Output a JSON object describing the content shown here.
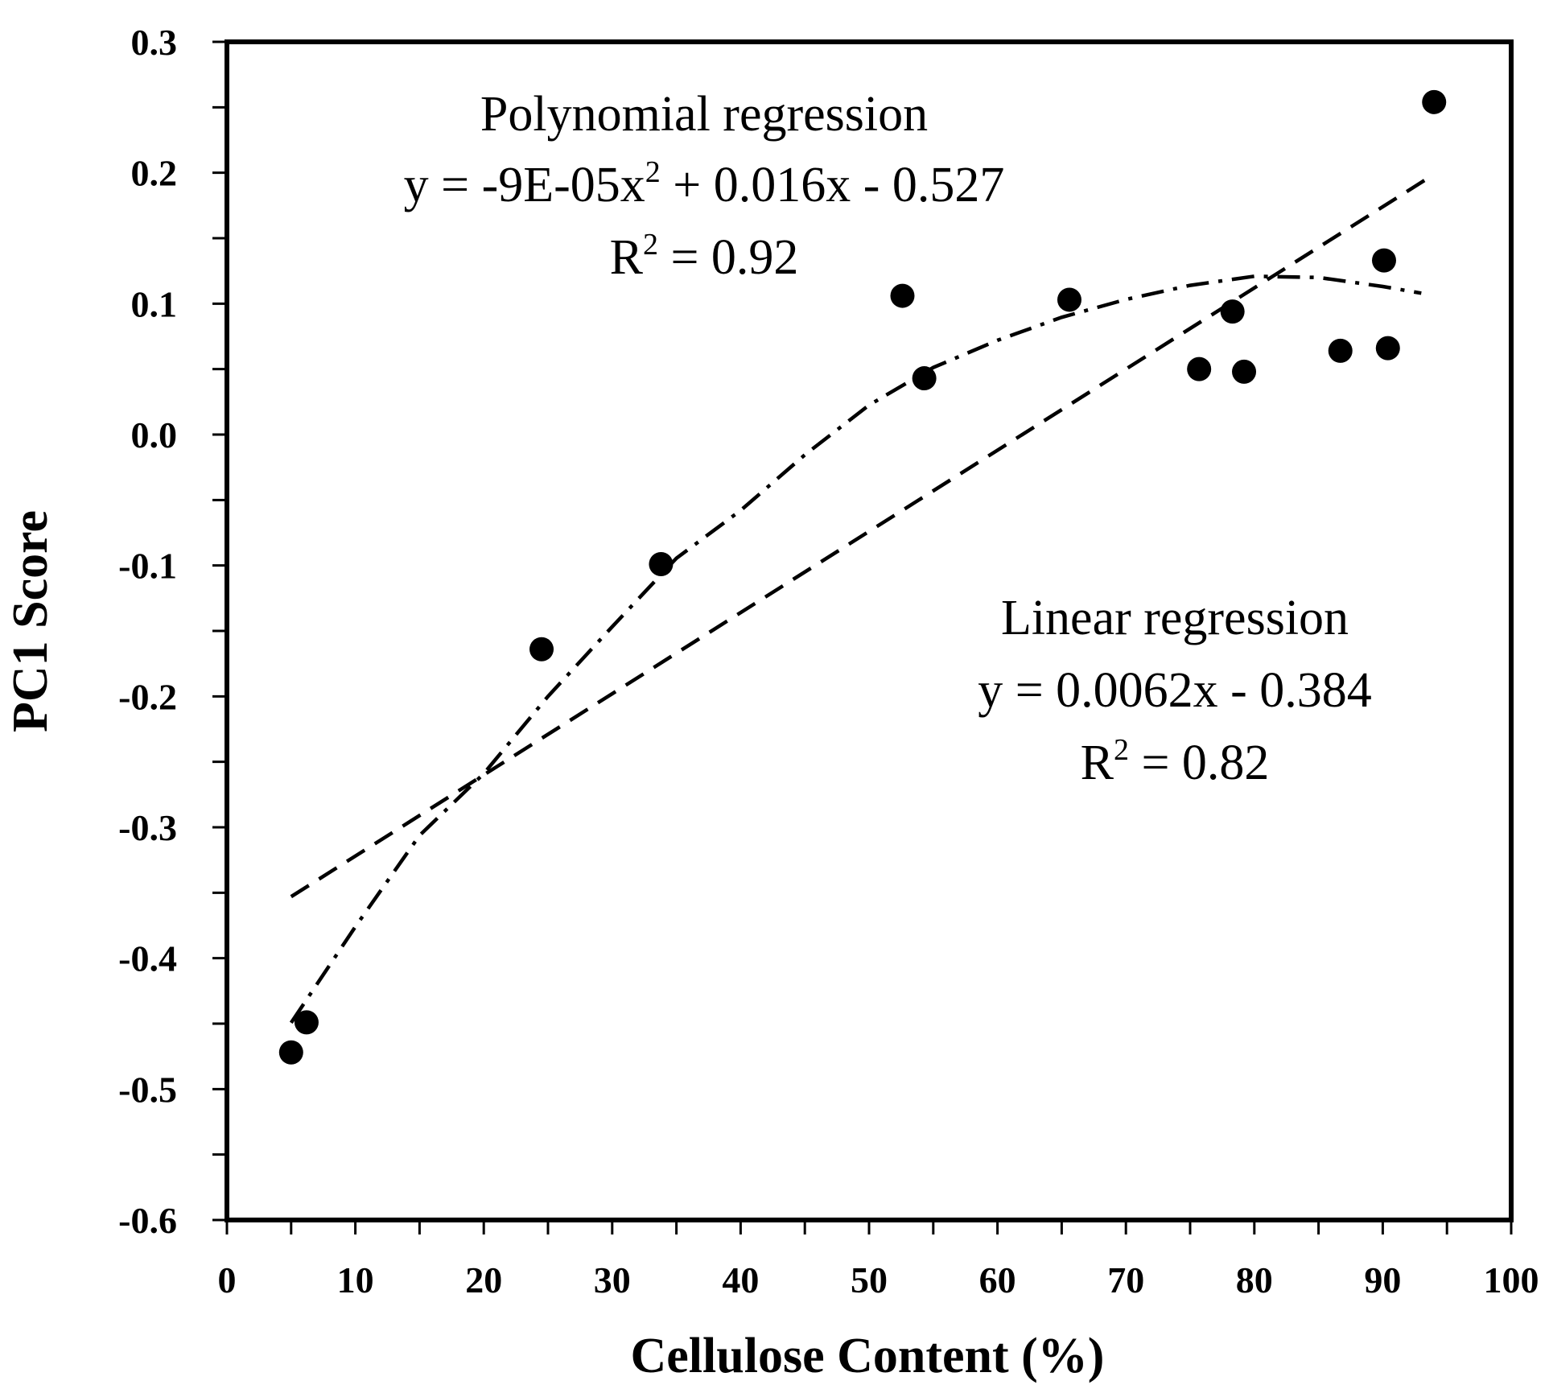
{
  "chart_data": {
    "type": "scatter",
    "title": "",
    "xlabel": "Cellulose Content (%)",
    "ylabel": "PC1 Score",
    "xlim": [
      0,
      100
    ],
    "ylim": [
      -0.6,
      0.3
    ],
    "x_ticks": [
      0,
      10,
      20,
      30,
      40,
      50,
      60,
      70,
      80,
      90,
      100
    ],
    "y_ticks": [
      0.3,
      0.2,
      0.1,
      0.0,
      -0.1,
      -0.2,
      -0.3,
      -0.4,
      -0.5,
      -0.6
    ],
    "x_tick_labels": [
      "0",
      "10",
      "20",
      "30",
      "40",
      "50",
      "60",
      "70",
      "80",
      "90",
      "100"
    ],
    "y_tick_labels": [
      "0.3",
      "0.2",
      "0.1",
      "0.0",
      "-0.1",
      "-0.2",
      "-0.3",
      "-0.4",
      "-0.5",
      "-0.6"
    ],
    "grid": false,
    "points": [
      {
        "x": 5.0,
        "y": -0.472
      },
      {
        "x": 6.2,
        "y": -0.449
      },
      {
        "x": 24.5,
        "y": -0.164
      },
      {
        "x": 33.8,
        "y": -0.099
      },
      {
        "x": 52.6,
        "y": 0.106
      },
      {
        "x": 54.3,
        "y": 0.043
      },
      {
        "x": 65.6,
        "y": 0.103
      },
      {
        "x": 75.7,
        "y": 0.05
      },
      {
        "x": 78.3,
        "y": 0.094
      },
      {
        "x": 79.2,
        "y": 0.048
      },
      {
        "x": 86.7,
        "y": 0.064
      },
      {
        "x": 90.1,
        "y": 0.133
      },
      {
        "x": 90.4,
        "y": 0.066
      },
      {
        "x": 94.0,
        "y": 0.254
      }
    ],
    "trendlines": [
      {
        "name": "Linear regression",
        "style": "dashed",
        "x": [
          5,
          94
        ],
        "y": [
          -0.353,
          0.1988
        ]
      },
      {
        "name": "Polynomial regression",
        "style": "dash-dot",
        "x": [
          5,
          10,
          15,
          20,
          25,
          30,
          35,
          40,
          45,
          50,
          55,
          60,
          65,
          70,
          75,
          80,
          85,
          90,
          93
        ],
        "y": [
          -0.4493,
          -0.376,
          -0.3062,
          -0.259,
          -0.2,
          -0.1468,
          -0.0945,
          -0.058,
          -0.0155,
          0.0225,
          0.0512,
          0.072,
          0.0896,
          0.1032,
          0.114,
          0.1209,
          0.12,
          0.1131,
          0.108
        ]
      }
    ],
    "annotations": {
      "poly_title": "Polynomial regression",
      "poly_eq_a": "y = -9E-05x",
      "poly_eq_sup": "2",
      "poly_eq_b": " + 0.016x - 0.527",
      "poly_r2_a": "R",
      "poly_r2_sup": "2",
      "poly_r2_b": " = 0.92",
      "lin_title": "Linear regression",
      "lin_eq": "y = 0.0062x - 0.384",
      "lin_r2_a": "R",
      "lin_r2_sup": "2",
      "lin_r2_b": " = 0.82"
    }
  }
}
